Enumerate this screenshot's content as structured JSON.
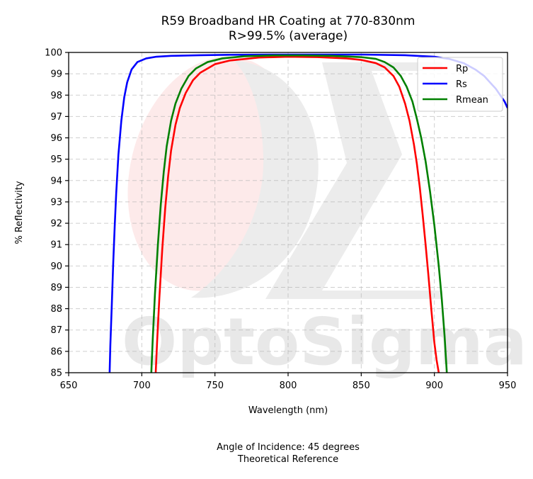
{
  "chart_data": {
    "type": "line",
    "title": "R59 Broadband HR Coating at 770-830nm",
    "subtitle": "R>99.5% (average)",
    "xlabel": "Wavelength (nm)",
    "ylabel": "% Reflectivity",
    "xlim": [
      650,
      950
    ],
    "ylim": [
      85,
      100
    ],
    "xticks": [
      650,
      700,
      750,
      800,
      850,
      900,
      950
    ],
    "yticks": [
      85,
      86,
      87,
      88,
      89,
      90,
      91,
      92,
      93,
      94,
      95,
      96,
      97,
      98,
      99,
      100
    ],
    "grid": true,
    "legend_position": "top-right",
    "series": [
      {
        "name": "Rp",
        "color": "#ff0000",
        "x": [
          709.5,
          710.5,
          712,
          714,
          716,
          718,
          720,
          723,
          726,
          730,
          735,
          740,
          750,
          760,
          780,
          800,
          820,
          840,
          850,
          860,
          866,
          872,
          876,
          880,
          883,
          886,
          888,
          890,
          892,
          894,
          896,
          898,
          900,
          901.5,
          903
        ],
        "y": [
          85,
          86.5,
          88.5,
          90.8,
          92.7,
          94.2,
          95.4,
          96.6,
          97.4,
          98.1,
          98.7,
          99.05,
          99.45,
          99.62,
          99.76,
          99.8,
          99.78,
          99.72,
          99.65,
          99.5,
          99.3,
          98.9,
          98.4,
          97.6,
          96.8,
          95.7,
          94.8,
          93.7,
          92.4,
          91,
          89.5,
          87.9,
          86.4,
          85.6,
          85
        ]
      },
      {
        "name": "Rs",
        "color": "#0000ff",
        "x": [
          678,
          678.5,
          679.5,
          680.5,
          681.5,
          682.5,
          684,
          686,
          688,
          690,
          693,
          697,
          703,
          710,
          720,
          740,
          760,
          800,
          850,
          880,
          900,
          910,
          920,
          928,
          934,
          938,
          942,
          945,
          948,
          950
        ],
        "y": [
          85,
          86.3,
          88.2,
          90.2,
          91.9,
          93.4,
          95.2,
          96.8,
          97.9,
          98.6,
          99.2,
          99.55,
          99.72,
          99.8,
          99.84,
          99.87,
          99.89,
          99.9,
          99.9,
          99.87,
          99.8,
          99.7,
          99.5,
          99.2,
          98.9,
          98.6,
          98.3,
          98,
          97.7,
          97.4
        ]
      },
      {
        "name": "Rmean",
        "color": "#008000",
        "x": [
          706.5,
          707.5,
          709,
          711,
          713,
          715,
          717,
          720,
          723,
          727,
          732,
          737,
          745,
          755,
          770,
          790,
          810,
          830,
          850,
          860,
          866,
          872,
          877,
          881,
          885,
          888,
          891,
          894,
          897,
          900,
          903,
          905,
          907,
          908.5
        ],
        "y": [
          85,
          86.6,
          88.7,
          91,
          92.9,
          94.4,
          95.6,
          96.8,
          97.6,
          98.3,
          98.9,
          99.25,
          99.55,
          99.72,
          99.82,
          99.86,
          99.86,
          99.84,
          99.78,
          99.7,
          99.55,
          99.3,
          98.9,
          98.4,
          97.7,
          96.9,
          96,
          94.9,
          93.5,
          91.9,
          90,
          88.5,
          86.7,
          85
        ]
      }
    ],
    "annotations": [
      "Angle of Incidence: 45 degrees",
      "Theoretical Reference"
    ]
  },
  "watermark": {
    "text": "OptoSigma"
  }
}
